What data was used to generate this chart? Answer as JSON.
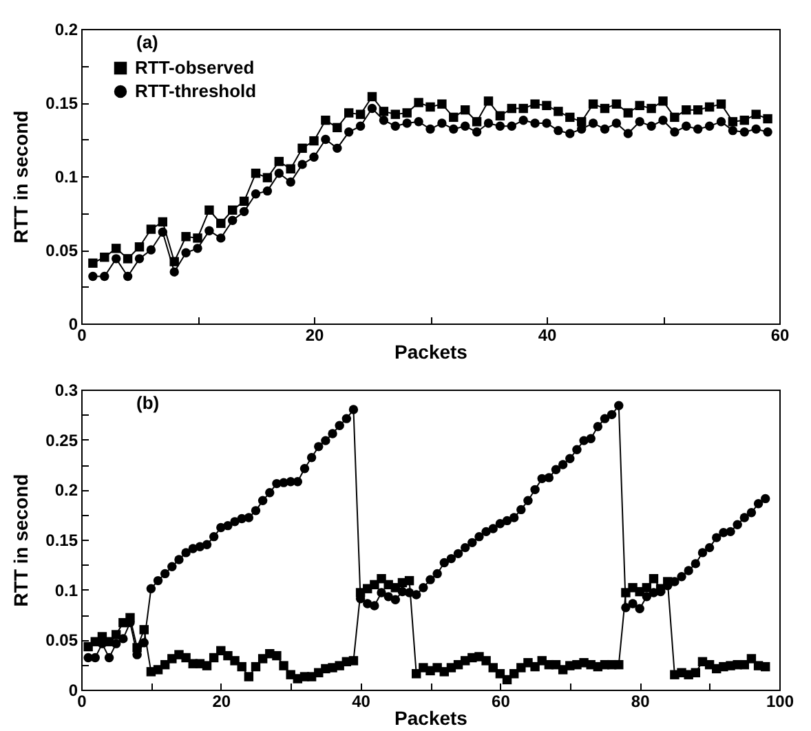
{
  "chart_data": [
    {
      "type": "line",
      "xlabel": "Packets",
      "ylabel": "RTT in second",
      "annotations": [
        "(a)"
      ],
      "legend": "top left",
      "grid": false,
      "line_style": "solid",
      "xlim": [
        0,
        60
      ],
      "xticks": [
        0,
        {
          "value": 10,
          "label": null
        },
        20,
        {
          "value": 30,
          "label": null
        },
        40,
        {
          "value": 50,
          "label": null
        },
        60
      ],
      "ylim": [
        0,
        0.2
      ],
      "yticks": [
        0,
        {
          "value": 0.025,
          "label": null
        },
        0.05,
        {
          "value": 0.075,
          "label": null
        },
        0.1,
        {
          "value": 0.125,
          "label": null
        },
        0.15,
        {
          "value": 0.175,
          "label": null
        },
        0.2
      ],
      "x": [
        1,
        2,
        3,
        4,
        5,
        6,
        7,
        8,
        9,
        10,
        11,
        12,
        13,
        14,
        15,
        16,
        17,
        18,
        19,
        20,
        21,
        22,
        23,
        24,
        25,
        26,
        27,
        28,
        29,
        30,
        31,
        32,
        33,
        34,
        35,
        36,
        37,
        38,
        39,
        40,
        41,
        42,
        43,
        44,
        45,
        46,
        47,
        48,
        49,
        50,
        51,
        52,
        53,
        54,
        55,
        56,
        57,
        58,
        59
      ],
      "series": [
        {
          "name": "RTT-observed",
          "color": "#000000",
          "marker": "square",
          "values": [
            0.041,
            0.045,
            0.051,
            0.044,
            0.052,
            0.064,
            0.069,
            0.042,
            0.059,
            0.058,
            0.077,
            0.068,
            0.077,
            0.083,
            0.102,
            0.099,
            0.11,
            0.105,
            0.119,
            0.124,
            0.138,
            0.133,
            0.143,
            0.142,
            0.154,
            0.144,
            0.142,
            0.143,
            0.15,
            0.147,
            0.149,
            0.14,
            0.145,
            0.137,
            0.151,
            0.141,
            0.146,
            0.146,
            0.149,
            0.148,
            0.144,
            0.14,
            0.137,
            0.149,
            0.146,
            0.149,
            0.143,
            0.148,
            0.146,
            0.151,
            0.14,
            0.145,
            0.145,
            0.147,
            0.149,
            0.137,
            0.138,
            0.142,
            0.139
          ]
        },
        {
          "name": "RTT-threshold",
          "color": "#000000",
          "marker": "circle",
          "values": [
            0.032,
            0.032,
            0.044,
            0.032,
            0.044,
            0.05,
            0.062,
            0.035,
            0.048,
            0.051,
            0.063,
            0.058,
            0.07,
            0.076,
            0.088,
            0.09,
            0.102,
            0.096,
            0.108,
            0.113,
            0.125,
            0.119,
            0.13,
            0.134,
            0.146,
            0.138,
            0.134,
            0.136,
            0.137,
            0.132,
            0.136,
            0.132,
            0.134,
            0.13,
            0.136,
            0.134,
            0.134,
            0.138,
            0.136,
            0.136,
            0.131,
            0.129,
            0.132,
            0.136,
            0.132,
            0.136,
            0.129,
            0.137,
            0.134,
            0.138,
            0.13,
            0.134,
            0.132,
            0.134,
            0.137,
            0.131,
            0.13,
            0.132,
            0.13
          ]
        }
      ]
    },
    {
      "type": "line",
      "xlabel": "Packets",
      "ylabel": "RTT in second",
      "annotations": [
        "(b)"
      ],
      "legend": "top left",
      "grid": false,
      "line_style": "solid",
      "xlim": [
        0,
        100
      ],
      "xticks": [
        0,
        {
          "value": 10,
          "label": null
        },
        20,
        {
          "value": 30,
          "label": null
        },
        40,
        {
          "value": 50,
          "label": null
        },
        60,
        {
          "value": 70,
          "label": null
        },
        80,
        {
          "value": 90,
          "label": null
        },
        100
      ],
      "ylim": [
        0,
        0.3
      ],
      "yticks": [
        0,
        {
          "value": 0.025,
          "label": null
        },
        0.05,
        {
          "value": 0.075,
          "label": null
        },
        0.1,
        {
          "value": 0.125,
          "label": null
        },
        0.15,
        {
          "value": 0.175,
          "label": null
        },
        0.2,
        {
          "value": 0.225,
          "label": null
        },
        0.25,
        {
          "value": 0.275,
          "label": null
        },
        0.3
      ],
      "x": [
        1,
        2,
        3,
        4,
        5,
        6,
        7,
        8,
        9,
        10,
        11,
        12,
        13,
        14,
        15,
        16,
        17,
        18,
        19,
        20,
        21,
        22,
        23,
        24,
        25,
        26,
        27,
        28,
        29,
        30,
        31,
        32,
        33,
        34,
        35,
        36,
        37,
        38,
        39,
        40,
        41,
        42,
        43,
        44,
        45,
        46,
        47,
        48,
        49,
        50,
        51,
        52,
        53,
        54,
        55,
        56,
        57,
        58,
        59,
        60,
        61,
        62,
        63,
        64,
        65,
        66,
        67,
        68,
        69,
        70,
        71,
        72,
        73,
        74,
        75,
        76,
        77,
        78,
        79,
        80,
        81,
        82,
        83,
        84,
        85,
        86,
        87,
        88,
        89,
        90,
        91,
        92,
        93,
        94,
        95,
        96,
        97,
        98
      ],
      "series": [
        {
          "name": "RTT-observed",
          "color": "#000000",
          "marker": "square",
          "values": [
            0.043,
            0.048,
            0.053,
            0.048,
            0.055,
            0.067,
            0.072,
            0.042,
            0.06,
            0.018,
            0.02,
            0.025,
            0.031,
            0.035,
            0.032,
            0.026,
            0.026,
            0.024,
            0.032,
            0.039,
            0.034,
            0.029,
            0.023,
            0.013,
            0.023,
            0.031,
            0.036,
            0.034,
            0.024,
            0.015,
            0.011,
            0.013,
            0.013,
            0.017,
            0.021,
            0.022,
            0.024,
            0.028,
            0.029,
            0.097,
            0.101,
            0.105,
            0.111,
            0.105,
            0.102,
            0.107,
            0.109,
            0.016,
            0.022,
            0.019,
            0.022,
            0.018,
            0.022,
            0.025,
            0.029,
            0.032,
            0.033,
            0.029,
            0.022,
            0.016,
            0.01,
            0.016,
            0.022,
            0.027,
            0.023,
            0.029,
            0.025,
            0.025,
            0.02,
            0.024,
            0.025,
            0.027,
            0.025,
            0.023,
            0.025,
            0.025,
            0.025,
            0.097,
            0.102,
            0.098,
            0.102,
            0.111,
            0.101,
            0.108,
            0.015,
            0.017,
            0.015,
            0.017,
            0.028,
            0.025,
            0.021,
            0.023,
            0.024,
            0.025,
            0.025,
            0.031,
            0.024,
            0.023
          ]
        },
        {
          "name": "RTT-threshold",
          "color": "#000000",
          "marker": "circle",
          "values": [
            0.032,
            0.032,
            0.046,
            0.032,
            0.046,
            0.051,
            0.067,
            0.035,
            0.047,
            0.101,
            0.109,
            0.116,
            0.123,
            0.13,
            0.137,
            0.141,
            0.143,
            0.145,
            0.153,
            0.162,
            0.164,
            0.168,
            0.171,
            0.172,
            0.179,
            0.189,
            0.197,
            0.206,
            0.207,
            0.208,
            0.208,
            0.221,
            0.232,
            0.243,
            0.249,
            0.256,
            0.264,
            0.271,
            0.28,
            0.091,
            0.086,
            0.084,
            0.097,
            0.093,
            0.09,
            0.098,
            0.097,
            0.095,
            0.102,
            0.11,
            0.116,
            0.127,
            0.131,
            0.136,
            0.142,
            0.147,
            0.153,
            0.158,
            0.161,
            0.166,
            0.169,
            0.172,
            0.18,
            0.189,
            0.2,
            0.211,
            0.212,
            0.22,
            0.225,
            0.231,
            0.24,
            0.249,
            0.251,
            0.263,
            0.271,
            0.275,
            0.284,
            0.082,
            0.086,
            0.081,
            0.093,
            0.097,
            0.098,
            0.104,
            0.108,
            0.113,
            0.119,
            0.126,
            0.137,
            0.142,
            0.152,
            0.157,
            0.158,
            0.165,
            0.172,
            0.177,
            0.186,
            0.191
          ]
        }
      ]
    }
  ]
}
